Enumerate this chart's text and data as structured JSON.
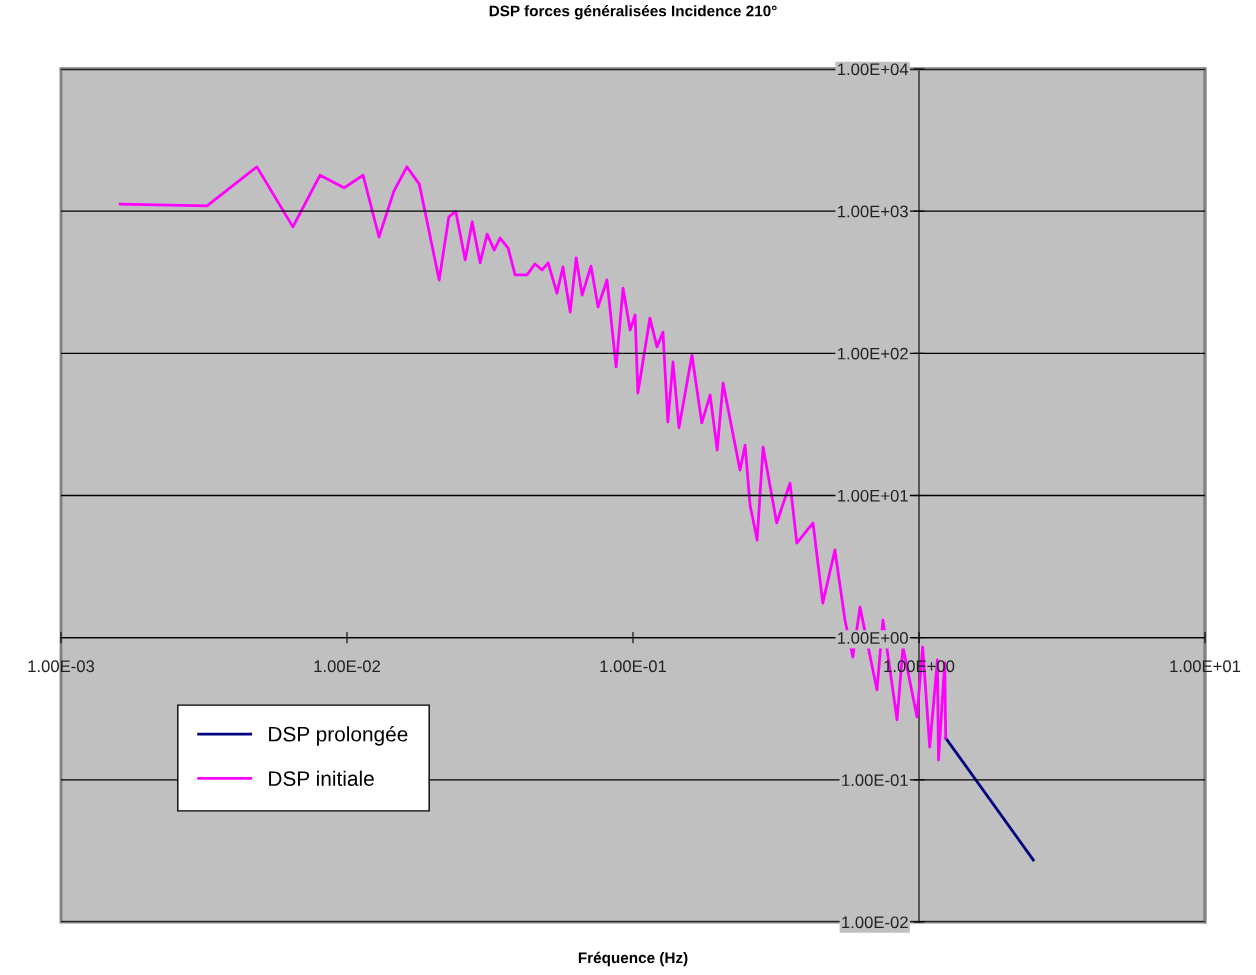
{
  "chart_data": {
    "type": "line",
    "title": "DSP forces généralisées Incidence 210°",
    "xlabel": "Fréquence (Hz)",
    "log": "xy",
    "grid": "y",
    "legend": "bottom left",
    "line_style": "solid",
    "marker": "none",
    "xlim": [
      0.001,
      10
    ],
    "ylim": [
      0.01,
      10000
    ],
    "xticks": [
      {
        "value": 0.001,
        "label": "1.00E-03"
      },
      {
        "value": 0.01,
        "label": "1.00E-02"
      },
      {
        "value": 0.1,
        "label": "1.00E-01"
      },
      {
        "value": 1,
        "label": "1.00E+00"
      },
      {
        "value": 10,
        "label": "1.00E+01"
      }
    ],
    "yticks": [
      {
        "value": 0.01,
        "label": "1.00E-02"
      },
      {
        "value": 0.1,
        "label": "1.00E-01"
      },
      {
        "value": 1,
        "label": "1.00E+00"
      },
      {
        "value": 10,
        "label": "1.00E+01"
      },
      {
        "value": 100,
        "label": "1.00E+02"
      },
      {
        "value": 1000,
        "label": "1.00E+03"
      },
      {
        "value": 10000,
        "label": "1.00E+04"
      }
    ],
    "series": [
      {
        "name": "DSP prolongée",
        "color": "#000080",
        "x": [
          1.24,
          2.51
        ],
        "values": [
          0.197,
          0.0273
        ]
      },
      {
        "name": "DSP initiale",
        "color": "#ff00ff",
        "x": [
          0.00161,
          0.00324,
          0.00484,
          0.00647,
          0.00805,
          0.00977,
          0.01138,
          0.01294,
          0.0146,
          0.0162,
          0.0179,
          0.021,
          0.0227,
          0.024,
          0.0259,
          0.0274,
          0.0292,
          0.0309,
          0.0327,
          0.0343,
          0.0366,
          0.0387,
          0.0426,
          0.0454,
          0.0481,
          0.0505,
          0.0542,
          0.0569,
          0.0603,
          0.0633,
          0.0664,
          0.0713,
          0.0755,
          0.0811,
          0.0873,
          0.0923,
          0.0977,
          0.1017,
          0.104,
          0.1146,
          0.1213,
          0.1273,
          0.1324,
          0.138,
          0.1448,
          0.1607,
          0.174,
          0.186,
          0.197,
          0.2065,
          0.2366,
          0.2466,
          0.2566,
          0.2716,
          0.285,
          0.318,
          0.354,
          0.374,
          0.426,
          0.461,
          0.508,
          0.551,
          0.587,
          0.622,
          0.713,
          0.748,
          0.838,
          0.879,
          0.984,
          1.03,
          1.09,
          1.16,
          1.17,
          1.23,
          1.24
        ],
        "values": [
          1120,
          1090,
          2050,
          775,
          1790,
          1460,
          1790,
          658,
          1390,
          2050,
          1550,
          328,
          910,
          1000,
          454,
          840,
          433,
          690,
          533,
          647,
          550,
          356,
          356,
          425,
          386,
          433,
          265,
          405,
          195,
          469,
          257,
          411,
          212,
          328,
          80.2,
          288,
          146,
          186,
          52.6,
          177,
          111,
          141,
          32.9,
          86.9,
          29.9,
          97.3,
          32.4,
          50.9,
          20.9,
          61.8,
          15.1,
          22.6,
          8.58,
          4.86,
          21.9,
          6.41,
          12.2,
          4.63,
          6.41,
          1.75,
          4.14,
          1.33,
          0.731,
          1.64,
          0.429,
          1.33,
          0.264,
          0.859,
          0.277,
          0.859,
          0.17,
          0.697,
          0.138,
          0.664,
          0.197
        ]
      }
    ]
  }
}
